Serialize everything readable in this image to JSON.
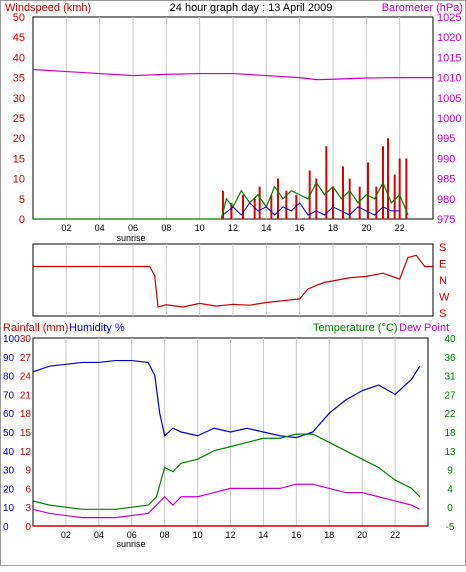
{
  "chart_data": [
    {
      "type": "line",
      "title": "24 hour graph day : 13 April 2009",
      "ylabel_left": "Windspeed (kmh)",
      "ylabel_right": "Barometer (hPa)",
      "x_ticks": [
        "02",
        "04",
        "06",
        "08",
        "10",
        "12",
        "14",
        "16",
        "18",
        "20",
        "22"
      ],
      "sunrise_label": "sunrise",
      "ylim_left": [
        0,
        50
      ],
      "left_ticks": [
        "0",
        "5",
        "10",
        "15",
        "20",
        "25",
        "30",
        "35",
        "40",
        "45",
        "50"
      ],
      "ylim_right": [
        975,
        1025
      ],
      "right_ticks": [
        "975",
        "980",
        "985",
        "990",
        "995",
        "1000",
        "1005",
        "1010",
        "1015",
        "1020",
        "1025"
      ],
      "grid": true,
      "colors": {
        "wind_gust": "#e00000",
        "wind_avg": "#008000",
        "wind_min": "#0000cc",
        "barometer": "#cc00cc",
        "left_axis": "#cc0000",
        "right_axis": "#cc00cc"
      },
      "series": [
        {
          "name": "Barometer (hPa)",
          "axis": "right",
          "x": [
            0,
            2,
            4,
            6,
            8,
            10,
            12,
            14,
            16,
            17,
            18,
            20,
            22,
            24
          ],
          "values": [
            1012,
            1011.5,
            1011,
            1010.5,
            1010.8,
            1011,
            1011,
            1010.5,
            1010,
            1009.5,
            1009.6,
            1009.9,
            1010,
            1010
          ]
        },
        {
          "name": "Windspeed gust",
          "axis": "left",
          "x": [
            11.4,
            11.9,
            12.6,
            13.3,
            13.6,
            14.3,
            14.7,
            15.2,
            15.8,
            16.6,
            17.0,
            17.6,
            18.0,
            18.6,
            19.0,
            19.6,
            20.1,
            20.6,
            21.0,
            21.3,
            21.7,
            22.0,
            22.4
          ],
          "values": [
            7,
            4,
            6,
            5,
            8,
            6,
            10,
            7,
            6,
            12,
            10,
            18,
            8,
            13,
            10,
            8,
            14,
            8,
            18,
            20,
            11,
            15,
            15
          ]
        },
        {
          "name": "Windspeed average",
          "axis": "left",
          "x": [
            0,
            11.3,
            11.6,
            12,
            12.5,
            13,
            13.5,
            14,
            14.5,
            15,
            15.5,
            16,
            16.5,
            17,
            17.5,
            18,
            18.5,
            19,
            19.5,
            20,
            20.5,
            21,
            21.5,
            22,
            22.5
          ],
          "values": [
            0,
            0,
            5,
            3,
            7,
            4,
            6,
            3,
            8,
            5,
            7,
            6,
            5,
            9,
            6,
            8,
            5,
            7,
            4,
            6,
            5,
            9,
            4,
            6,
            1
          ]
        },
        {
          "name": "Windspeed minimum",
          "axis": "left",
          "x": [
            11.4,
            12,
            12.5,
            13,
            13.5,
            14,
            14.5,
            15,
            15.5,
            16,
            16.5,
            17,
            17.5,
            18,
            18.5,
            19,
            19.5,
            20,
            20.5,
            21,
            21.5,
            22
          ],
          "values": [
            1,
            3,
            1,
            4,
            2,
            3,
            1,
            3,
            2,
            4,
            1,
            2,
            1,
            3,
            2,
            1,
            3,
            2,
            1,
            3,
            2,
            2
          ]
        }
      ]
    },
    {
      "type": "line",
      "compass_labels": [
        "S",
        "E",
        "N",
        "W",
        "S"
      ],
      "x_ticks": [
        "02",
        "04",
        "06",
        "08",
        "10",
        "12",
        "14",
        "16",
        "18",
        "20",
        "22"
      ],
      "grid": true,
      "colors": {
        "direction": "#cc0000",
        "labels": "#cc0000"
      },
      "series": [
        {
          "name": "Wind direction",
          "x": [
            0,
            1,
            2,
            3,
            4,
            5,
            6,
            7,
            7.3,
            7.5,
            8,
            9,
            10,
            11,
            12,
            13,
            14,
            15,
            16,
            16.5,
            17,
            17.5,
            18,
            19,
            20,
            21,
            22,
            22.5,
            23,
            23.5,
            24
          ],
          "values": [
            90,
            90,
            90,
            90,
            90,
            90,
            90,
            90,
            70,
            0,
            5,
            0,
            8,
            2,
            6,
            4,
            10,
            14,
            18,
            40,
            48,
            55,
            58,
            65,
            68,
            75,
            62,
            110,
            115,
            90,
            90
          ]
        }
      ]
    },
    {
      "type": "line",
      "ylabel_left_1": "Rainfall (mm)",
      "ylabel_left_2": "Humidity %",
      "ylabel_right_1": "Temperature (°C)",
      "ylabel_right_2": "Dew Point",
      "x_ticks": [
        "02",
        "04",
        "06",
        "08",
        "10",
        "12",
        "14",
        "16",
        "18",
        "20",
        "22"
      ],
      "sunrise_label": "sunrise",
      "humidity_ticks": [
        "0",
        "10",
        "20",
        "30",
        "40",
        "50",
        "60",
        "70",
        "80",
        "90",
        "100"
      ],
      "rain_ticks": [
        "0",
        "3",
        "6",
        "9",
        "12",
        "15",
        "18",
        "21",
        "24",
        "27",
        "30"
      ],
      "temp_ticks": [
        "-5",
        "0",
        "4",
        "9",
        "13",
        "18",
        "22",
        "27",
        "31",
        "36",
        "40"
      ],
      "ylim_humidity": [
        0,
        100
      ],
      "ylim_rain": [
        0,
        30
      ],
      "ylim_temp": [
        -5,
        40
      ],
      "grid": true,
      "colors": {
        "humidity": "#0000cc",
        "temperature": "#008000",
        "dewpoint": "#cc00cc",
        "rain": "#cc0000",
        "rain_axis": "#cc0000",
        "humidity_axis": "#0000cc",
        "temp_axis": "#008000",
        "dew_axis": "#cc00cc"
      },
      "series": [
        {
          "name": "Humidity %",
          "axis": "humidity",
          "x": [
            0,
            1,
            2,
            3,
            4,
            5,
            6,
            7,
            7.4,
            7.7,
            8,
            8.5,
            9,
            10,
            11,
            12,
            13,
            14,
            15,
            16,
            17,
            18,
            19,
            20,
            21,
            22,
            23,
            23.5
          ],
          "values": [
            82,
            85,
            86,
            87,
            87,
            88,
            88,
            87,
            80,
            60,
            48,
            52,
            50,
            48,
            52,
            50,
            52,
            50,
            48,
            47,
            50,
            60,
            67,
            72,
            75,
            70,
            78,
            85
          ]
        },
        {
          "name": "Temperature (°C)",
          "axis": "temp",
          "x": [
            0,
            1,
            2,
            3,
            4,
            5,
            6,
            7,
            7.5,
            8,
            8.5,
            9,
            10,
            11,
            12,
            13,
            14,
            15,
            16,
            17,
            18,
            19,
            20,
            21,
            22,
            23,
            23.5
          ],
          "values": [
            1,
            0,
            -0.5,
            -1,
            -1,
            -1,
            -0.5,
            0,
            2,
            9,
            8,
            10,
            11,
            13,
            14,
            15,
            16,
            16,
            17,
            17,
            15,
            13,
            11,
            9,
            6,
            4,
            2
          ]
        },
        {
          "name": "Dew Point",
          "axis": "temp",
          "x": [
            0,
            1,
            2,
            3,
            4,
            5,
            6,
            7,
            7.5,
            8,
            8.5,
            9,
            10,
            11,
            12,
            13,
            14,
            15,
            16,
            17,
            18,
            19,
            20,
            21,
            22,
            23,
            23.5
          ],
          "values": [
            -1,
            -2,
            -2.5,
            -3,
            -3,
            -3,
            -2.5,
            -2,
            0,
            2,
            0,
            2,
            2,
            3,
            4,
            4,
            4,
            4,
            5,
            5,
            4,
            3,
            3,
            2,
            1,
            0,
            -1
          ]
        },
        {
          "name": "Rainfall (mm)",
          "axis": "rain",
          "x": [
            0,
            24
          ],
          "values": [
            0,
            0
          ]
        }
      ]
    }
  ]
}
